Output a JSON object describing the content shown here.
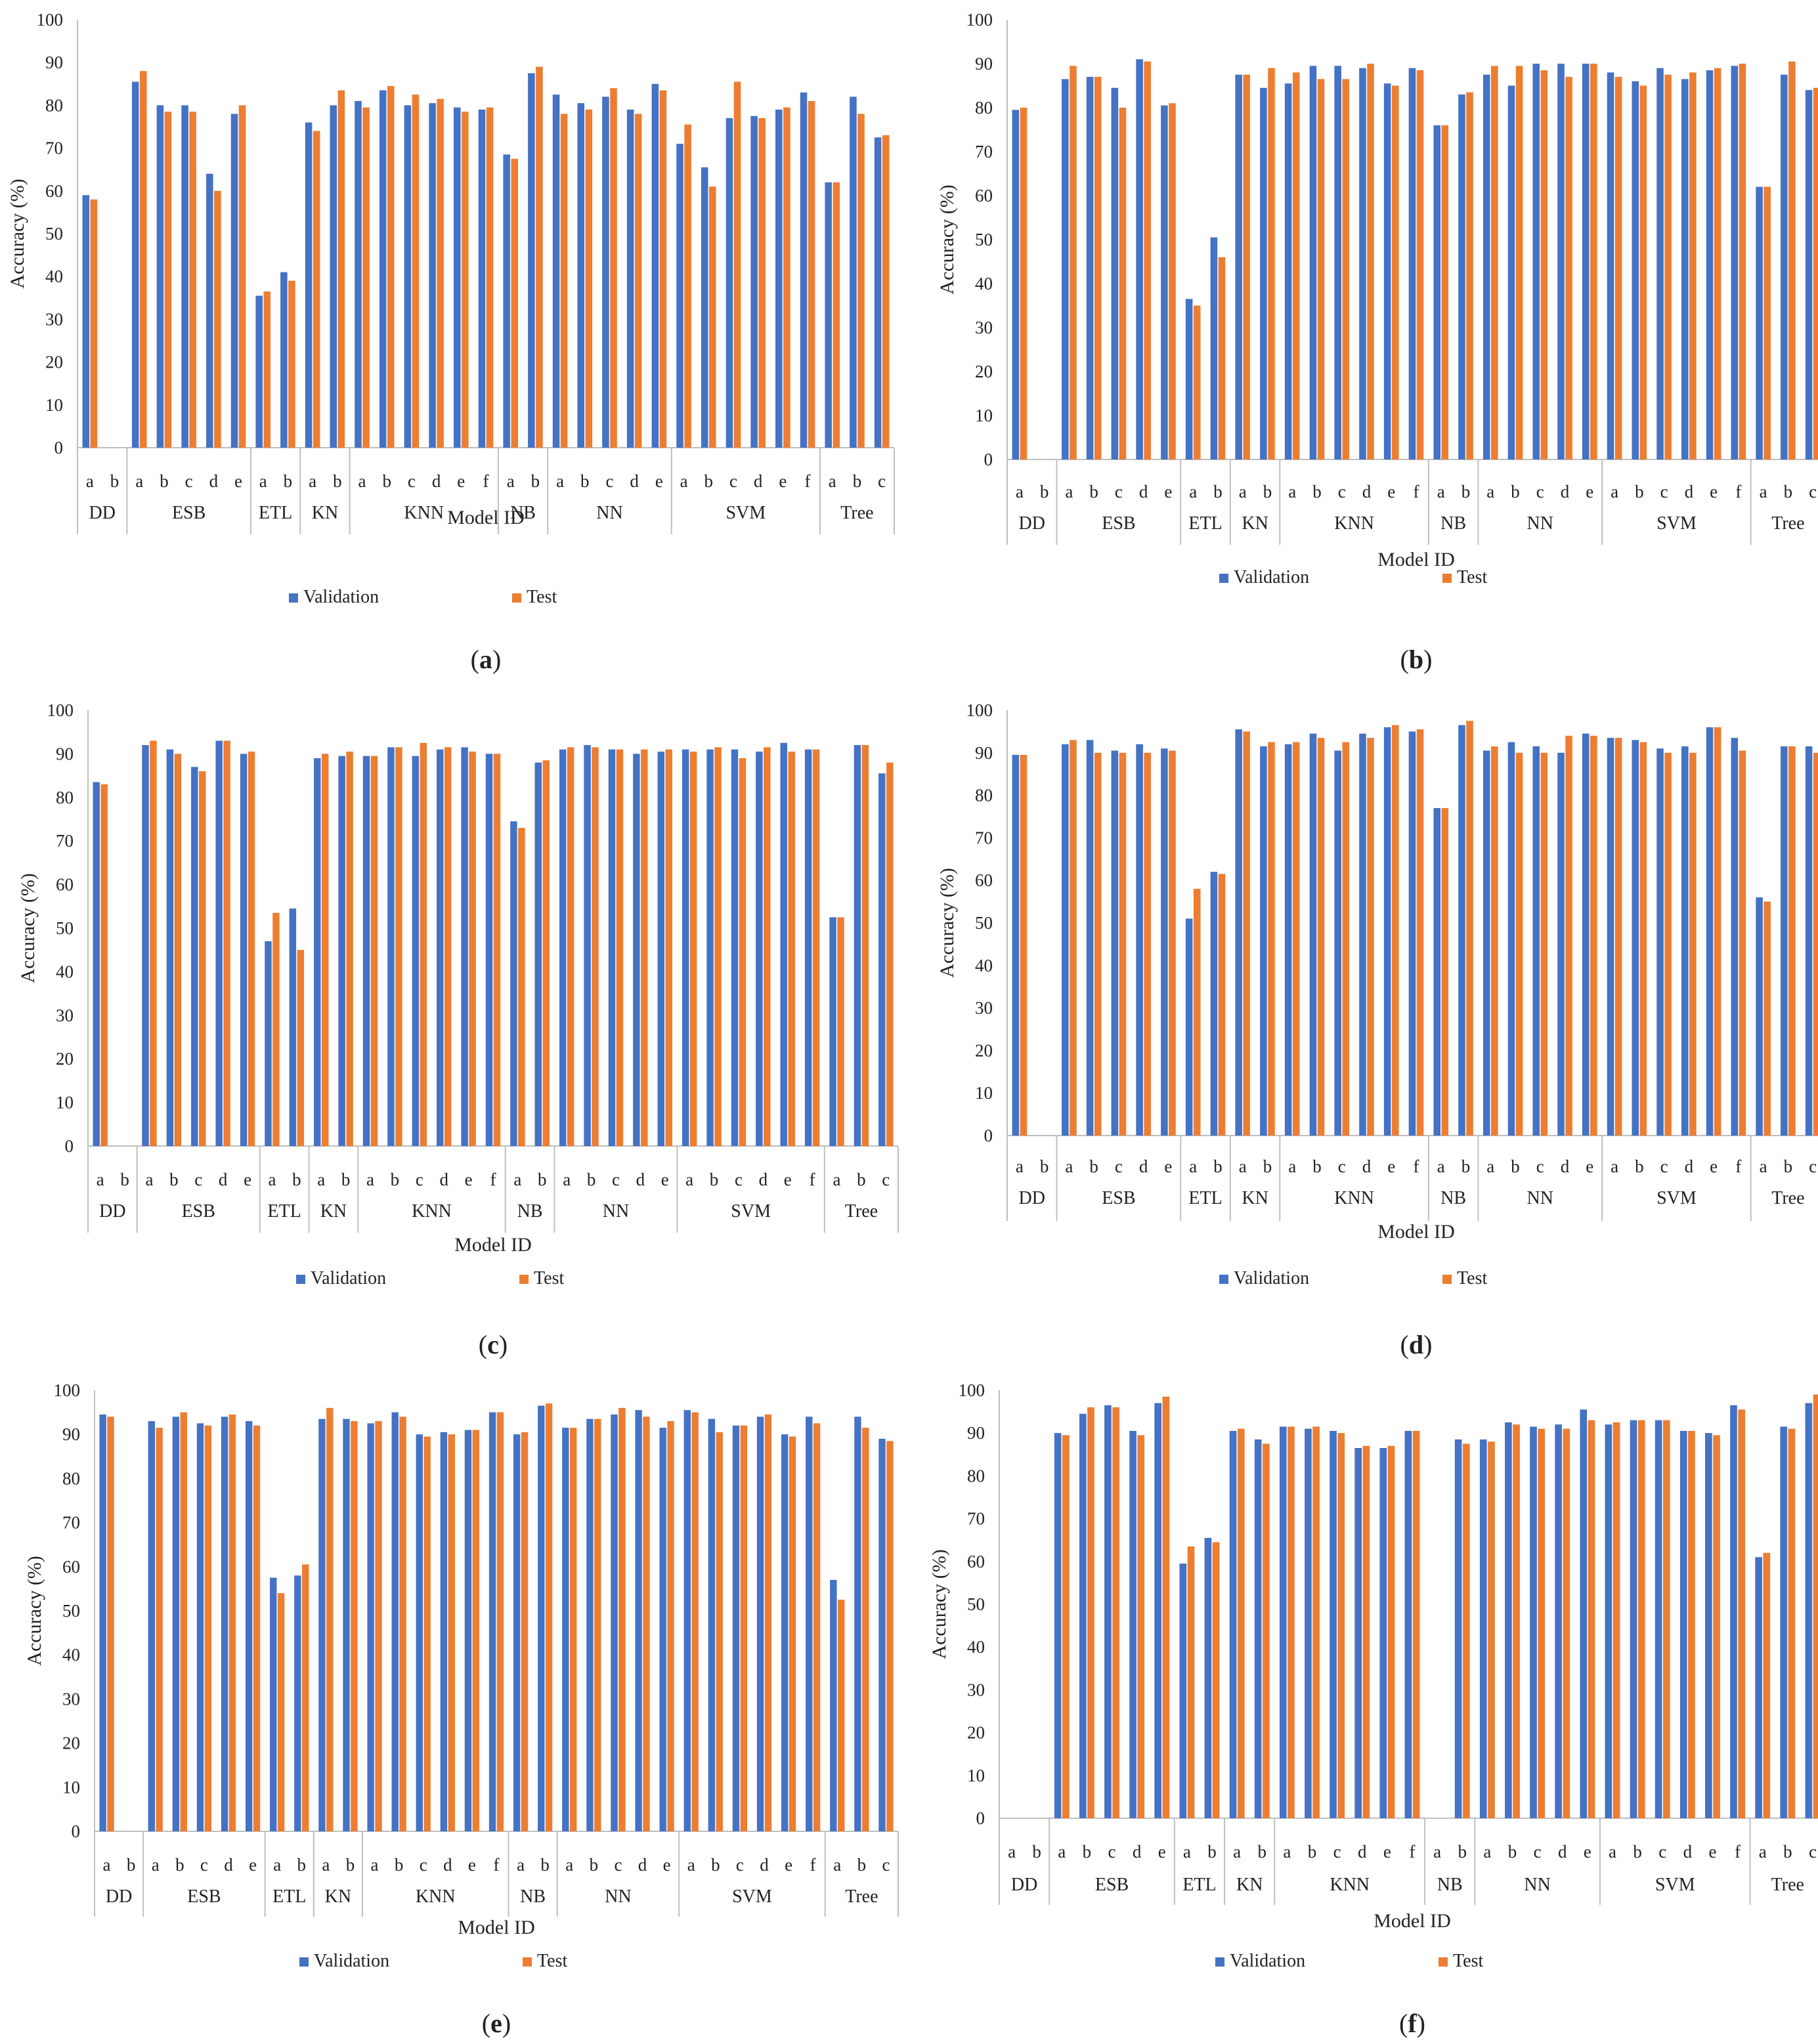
{
  "figure": {
    "groups": [
      "DD",
      "ESB",
      "ETL",
      "KN",
      "KNN",
      "NB",
      "NN",
      "SVM",
      "Tree"
    ],
    "group_models": {
      "DD": [
        "a",
        "b"
      ],
      "ESB": [
        "a",
        "b",
        "c",
        "d",
        "e"
      ],
      "ETL": [
        "a",
        "b"
      ],
      "KN": [
        "a",
        "b"
      ],
      "KNN": [
        "a",
        "b",
        "c",
        "d",
        "e",
        "f"
      ],
      "NB": [
        "a",
        "b"
      ],
      "NN": [
        "a",
        "b",
        "c",
        "d",
        "e"
      ],
      "SVM": [
        "a",
        "b",
        "c",
        "d",
        "e",
        "f"
      ],
      "Tree": [
        "a",
        "b",
        "c"
      ]
    },
    "colors": {
      "validation": "#4472C4",
      "test": "#ED7D31",
      "axis": "#bfbfbf",
      "text": "#222222"
    }
  },
  "chart_data": [
    {
      "type": "bar",
      "panel_label": "(a)",
      "title": "",
      "xlabel": "Model ID",
      "ylabel": "Accuracy (%)",
      "ylim": [
        0,
        100
      ],
      "yticks": [
        0,
        10,
        20,
        30,
        40,
        50,
        60,
        70,
        80,
        90,
        100
      ],
      "legend": [
        "Validation",
        "Test"
      ],
      "legend_position": "bottom",
      "series": [
        {
          "name": "Validation",
          "values": [
            59,
            null,
            85.5,
            80,
            80,
            64,
            78,
            35.5,
            41,
            76,
            80,
            81,
            83.5,
            80,
            80.5,
            79.5,
            79,
            68.5,
            87.5,
            82.5,
            80.5,
            82,
            79,
            85,
            71,
            65.5,
            77,
            77.5,
            79,
            83,
            62,
            82,
            72.5
          ]
        },
        {
          "name": "Test",
          "values": [
            58,
            null,
            88,
            78.5,
            78.5,
            60,
            80,
            36.5,
            39,
            74,
            83.5,
            79.5,
            84.5,
            82.5,
            81.5,
            78.5,
            79.5,
            67.5,
            89,
            78,
            79,
            84,
            78,
            83.5,
            75.5,
            61,
            85.5,
            77,
            79.5,
            81,
            62,
            78,
            73
          ]
        }
      ]
    },
    {
      "type": "bar",
      "panel_label": "(b)",
      "title": "",
      "xlabel": "Model ID",
      "ylabel": "Accuracy (%)",
      "ylim": [
        0,
        100
      ],
      "yticks": [
        0,
        10,
        20,
        30,
        40,
        50,
        60,
        70,
        80,
        90,
        100
      ],
      "legend": [
        "Validation",
        "Test"
      ],
      "legend_position": "bottom",
      "series": [
        {
          "name": "Validation",
          "values": [
            79.5,
            null,
            86.5,
            87,
            84.5,
            91,
            80.5,
            36.5,
            50.5,
            87.5,
            84.5,
            85.5,
            89.5,
            89.5,
            89,
            85.5,
            89,
            76,
            83,
            87.5,
            85,
            90,
            90,
            90,
            88,
            86,
            89,
            86.5,
            88.5,
            89.5,
            62,
            87.5,
            84
          ]
        },
        {
          "name": "Test",
          "values": [
            80,
            null,
            89.5,
            87,
            80,
            90.5,
            81,
            35,
            46,
            87.5,
            89,
            88,
            86.5,
            86.5,
            90,
            85,
            88.5,
            76,
            83.5,
            89.5,
            89.5,
            88.5,
            87,
            90,
            87,
            85,
            87.5,
            88,
            89,
            90,
            62,
            90.5,
            84.5
          ]
        }
      ]
    },
    {
      "type": "bar",
      "panel_label": "(c)",
      "title": "",
      "xlabel": "Model ID",
      "ylabel": "Accuracy (%)",
      "ylim": [
        0,
        100
      ],
      "yticks": [
        0,
        10,
        20,
        30,
        40,
        50,
        60,
        70,
        80,
        90,
        100
      ],
      "legend": [
        "Validation",
        "Test"
      ],
      "legend_position": "bottom",
      "series": [
        {
          "name": "Validation",
          "values": [
            83.5,
            null,
            92,
            91,
            87,
            93,
            90,
            47,
            54.5,
            89,
            89.5,
            89.5,
            91.5,
            89.5,
            91,
            91.5,
            90,
            74.5,
            88,
            91,
            92,
            91,
            90,
            90.5,
            91,
            91,
            91,
            90.5,
            92.5,
            91,
            52.5,
            92,
            85.5
          ]
        },
        {
          "name": "Test",
          "values": [
            83,
            null,
            93,
            90,
            86,
            93,
            90.5,
            53.5,
            45,
            90,
            90.5,
            89.5,
            91.5,
            92.5,
            91.5,
            90.5,
            90,
            73,
            88.5,
            91.5,
            91.5,
            91,
            91,
            91,
            90.5,
            91.5,
            89,
            91.5,
            90.5,
            91,
            52.5,
            92,
            88
          ]
        }
      ]
    },
    {
      "type": "bar",
      "panel_label": "(d)",
      "title": "",
      "xlabel": "Model ID",
      "ylabel": "Accuracy (%)",
      "ylim": [
        0,
        100
      ],
      "yticks": [
        0,
        10,
        20,
        30,
        40,
        50,
        60,
        70,
        80,
        90,
        100
      ],
      "legend": [
        "Validation",
        "Test"
      ],
      "legend_position": "bottom",
      "series": [
        {
          "name": "Validation",
          "values": [
            89.5,
            null,
            92,
            93,
            90.5,
            92,
            91,
            51,
            62,
            95.5,
            91.5,
            92,
            94.5,
            90.5,
            94.5,
            96,
            95,
            77,
            96.5,
            90.5,
            92.5,
            91.5,
            90,
            94.5,
            93.5,
            93,
            91,
            91.5,
            96,
            93.5,
            56,
            91.5,
            91.5
          ]
        },
        {
          "name": "Test",
          "values": [
            89.5,
            null,
            93,
            90,
            90,
            90,
            90.5,
            58,
            61.5,
            95,
            92.5,
            92.5,
            93.5,
            92.5,
            93.5,
            96.5,
            95.5,
            77,
            97.5,
            91.5,
            90,
            90,
            94,
            94,
            93.5,
            92.5,
            90,
            90,
            96,
            90.5,
            55,
            91.5,
            90
          ]
        }
      ]
    },
    {
      "type": "bar",
      "panel_label": "(e)",
      "title": "",
      "xlabel": "Model ID",
      "ylabel": "Accuracy (%)",
      "ylim": [
        0,
        100
      ],
      "yticks": [
        0,
        10,
        20,
        30,
        40,
        50,
        60,
        70,
        80,
        90,
        100
      ],
      "legend": [
        "Validation",
        "Test"
      ],
      "legend_position": "bottom",
      "series": [
        {
          "name": "Validation",
          "values": [
            94.5,
            null,
            93,
            94,
            92.5,
            94,
            93,
            57.5,
            58,
            93.5,
            93.5,
            92.5,
            95,
            90,
            90.5,
            91,
            95,
            90,
            96.5,
            91.5,
            93.5,
            94.5,
            95.5,
            91.5,
            95.5,
            93.5,
            92,
            94,
            90,
            94,
            57,
            94,
            89
          ]
        },
        {
          "name": "Test",
          "values": [
            94,
            null,
            91.5,
            95,
            92,
            94.5,
            92,
            54,
            60.5,
            96,
            93,
            93,
            94,
            89.5,
            90,
            91,
            95,
            90.5,
            97,
            91.5,
            93.5,
            96,
            94,
            93,
            95,
            90.5,
            92,
            94.5,
            89.5,
            92.5,
            52.5,
            91.5,
            88.5
          ]
        }
      ]
    },
    {
      "type": "bar",
      "panel_label": "(f)",
      "title": "",
      "xlabel": "Model ID",
      "ylabel": "Accuracy (%)",
      "ylim": [
        0,
        100
      ],
      "yticks": [
        0,
        10,
        20,
        30,
        40,
        50,
        60,
        70,
        80,
        90,
        100
      ],
      "legend": [
        "Validation",
        "Test"
      ],
      "legend_position": "bottom",
      "series": [
        {
          "name": "Validation",
          "values": [
            null,
            null,
            90,
            94.5,
            96.5,
            90.5,
            97,
            59.5,
            65.5,
            90.5,
            88.5,
            91.5,
            91,
            90.5,
            86.5,
            86.5,
            90.5,
            null,
            88.5,
            88.5,
            92.5,
            91.5,
            92,
            95.5,
            92,
            93,
            93,
            90.5,
            90,
            96.5,
            61,
            91.5,
            97
          ]
        },
        {
          "name": "Test",
          "values": [
            null,
            null,
            89.5,
            96,
            96,
            89.5,
            98.5,
            63.5,
            64.5,
            91,
            87.5,
            91.5,
            91.5,
            90,
            87,
            87,
            90.5,
            null,
            87.5,
            88,
            92,
            91,
            91,
            93,
            92.5,
            93,
            93,
            90.5,
            89.5,
            95.5,
            62,
            91,
            99
          ]
        }
      ]
    }
  ]
}
